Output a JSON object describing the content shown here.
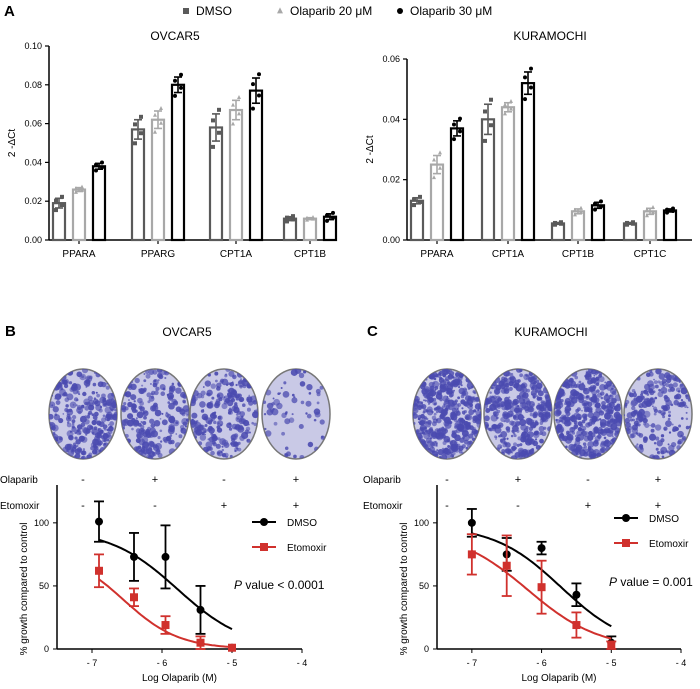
{
  "panel_labels": {
    "a": "A",
    "b": "B",
    "c": "C"
  },
  "legend_a": [
    {
      "name": "DMSO",
      "marker": "square",
      "color": "#5a5a5a"
    },
    {
      "name": "Olaparib 20 μM",
      "marker": "triangle",
      "color": "#a8a8a8"
    },
    {
      "name": "Olaparib 30 μM",
      "marker": "circle",
      "color": "#000000"
    }
  ],
  "treatments": {
    "row_labels": [
      "Olaparib",
      "Etomoxir"
    ],
    "olaparib": [
      "-",
      "+",
      "-",
      "+"
    ],
    "etomoxir": [
      "-",
      "-",
      "+",
      "+"
    ]
  },
  "plate_colors": {
    "stain": "#4b4bb0",
    "background": "#c9c9e6"
  },
  "b_title": "OVCAR5",
  "c_title": "KURAMOCHI",
  "chart_data": [
    {
      "type": "bar",
      "title": "OVCAR5",
      "ylabel": "2 -ΔCt",
      "ylim": [
        0,
        0.1
      ],
      "yticks": [
        "0.00",
        "0.02",
        "0.04",
        "0.06",
        "0.08",
        "0.10"
      ],
      "categories": [
        "PPARA",
        "PPARG",
        "CPT1A",
        "CPT1B"
      ],
      "series": [
        {
          "name": "DMSO",
          "values": [
            0.019,
            0.057,
            0.058,
            0.011
          ],
          "errors": [
            0.0025,
            0.005,
            0.007,
            0.001
          ]
        },
        {
          "name": "Olaparib 20 μM",
          "values": [
            0.026,
            0.062,
            0.067,
            0.011
          ],
          "errors": [
            0.001,
            0.0045,
            0.005,
            0.0005
          ]
        },
        {
          "name": "Olaparib 30 μM",
          "values": [
            0.038,
            0.08,
            0.077,
            0.012
          ],
          "errors": [
            0.0015,
            0.004,
            0.0065,
            0.0015
          ]
        }
      ]
    },
    {
      "type": "bar",
      "title": "KURAMOCHI",
      "ylabel": "2 -ΔCt",
      "ylim": [
        0,
        0.06
      ],
      "yticks": [
        "0.00",
        "0.02",
        "0.04",
        "0.06"
      ],
      "categories": [
        "PPARA",
        "CPT1A",
        "CPT1B",
        "CPT1C"
      ],
      "series": [
        {
          "name": "DMSO",
          "values": [
            0.013,
            0.04,
            0.0055,
            0.0055
          ],
          "errors": [
            0.001,
            0.005,
            0.0003,
            0.0003
          ]
        },
        {
          "name": "Olaparib 20 μM",
          "values": [
            0.025,
            0.044,
            0.0095,
            0.0095
          ],
          "errors": [
            0.003,
            0.0015,
            0.0008,
            0.001
          ]
        },
        {
          "name": "Olaparib 30 μM",
          "values": [
            0.037,
            0.052,
            0.0115,
            0.0098
          ],
          "errors": [
            0.0025,
            0.0037,
            0.001,
            0.0005
          ]
        }
      ]
    },
    {
      "type": "line",
      "xlabel": "Log Olaparib (M)",
      "ylabel": "% growth compared to control",
      "xlim": [
        -7.5,
        -4
      ],
      "ylim": [
        0,
        130
      ],
      "xticks": [
        "-7",
        "-6",
        "-5",
        "-4"
      ],
      "yticks": [
        "0",
        "50",
        "100"
      ],
      "annotation": {
        "italic": "P",
        "text": " value < 0.0001"
      },
      "series": [
        {
          "name": "DMSO",
          "color": "#000000",
          "marker": "circle",
          "x": [
            -6.9,
            -6.4,
            -5.95,
            -5.45,
            -5.0
          ],
          "values": [
            101,
            73,
            73,
            31,
            1
          ],
          "errors": [
            16,
            19,
            25,
            19,
            0
          ]
        },
        {
          "name": "Etomoxir",
          "color": "#d0312d",
          "marker": "square",
          "x": [
            -6.9,
            -6.4,
            -5.95,
            -5.45,
            -5.0
          ],
          "values": [
            62,
            41,
            19,
            5,
            1
          ],
          "errors": [
            13,
            7,
            7,
            5,
            0
          ]
        }
      ]
    },
    {
      "type": "line",
      "xlabel": "Log Olaparib (M)",
      "ylabel": "% growth compared to control",
      "xlim": [
        -7.5,
        -4
      ],
      "ylim": [
        0,
        130
      ],
      "xticks": [
        "-7",
        "-6",
        "-5",
        "-4"
      ],
      "yticks": [
        "0",
        "50",
        "100"
      ],
      "annotation": {
        "italic": "P",
        "text": " value = 0.001"
      },
      "series": [
        {
          "name": "DMSO",
          "color": "#000000",
          "marker": "circle",
          "x": [
            -7.0,
            -6.5,
            -6.0,
            -5.5,
            -5.0
          ],
          "values": [
            100,
            75,
            80,
            43,
            5
          ],
          "errors": [
            11,
            13,
            5,
            9,
            5
          ]
        },
        {
          "name": "Etomoxir",
          "color": "#d0312d",
          "marker": "square",
          "x": [
            -7.0,
            -6.5,
            -6.0,
            -5.5,
            -5.0
          ],
          "values": [
            75,
            66,
            49,
            19,
            3
          ],
          "errors": [
            16,
            24,
            21,
            10,
            3
          ]
        }
      ]
    }
  ]
}
